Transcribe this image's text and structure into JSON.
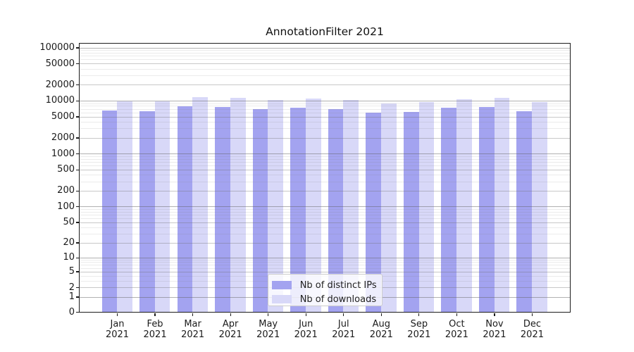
{
  "chart_data": {
    "type": "bar",
    "title": "AnnotationFilter 2021",
    "x_tick_labels": [
      [
        "Jan",
        "2021"
      ],
      [
        "Feb",
        "2021"
      ],
      [
        "Mar",
        "2021"
      ],
      [
        "Apr",
        "2021"
      ],
      [
        "May",
        "2021"
      ],
      [
        "Jun",
        "2021"
      ],
      [
        "Jul",
        "2021"
      ],
      [
        "Aug",
        "2021"
      ],
      [
        "Sep",
        "2021"
      ],
      [
        "Oct",
        "2021"
      ],
      [
        "Nov",
        "2021"
      ],
      [
        "Dec",
        "2021"
      ]
    ],
    "series": [
      {
        "name": "Nb of distinct IPs",
        "color": "#a3a3f0",
        "values": [
          6500,
          6300,
          7900,
          7500,
          7000,
          7400,
          6900,
          6000,
          6200,
          7400,
          7500,
          6300
        ]
      },
      {
        "name": "Nb of downloads",
        "color": "#d8d8f8",
        "values": [
          9800,
          9700,
          11700,
          11300,
          10200,
          10900,
          10400,
          9000,
          9400,
          10800,
          11400,
          9500
        ]
      }
    ],
    "y_axis": {
      "scale": "log1p",
      "ylim": [
        0,
        100000
      ],
      "major_ticks": [
        0,
        1,
        2,
        5,
        10,
        20,
        50,
        100,
        200,
        500,
        1000,
        2000,
        5000,
        10000,
        20000,
        50000,
        100000
      ],
      "minor_ticks": [
        3,
        4,
        6,
        7,
        8,
        9,
        30,
        40,
        60,
        70,
        80,
        90,
        300,
        400,
        600,
        700,
        800,
        900,
        3000,
        4000,
        6000,
        7000,
        8000,
        9000,
        30000,
        40000,
        60000,
        70000,
        80000,
        90000
      ]
    },
    "legend_position": "lower center",
    "grid": true
  },
  "colors": {
    "spine": "#1c1c1c",
    "tick_label": "#1a1a1a",
    "grid_major": "rgba(110,110,110,0.38)",
    "grid_decade": "rgba(100,100,100,0.50)",
    "grid_minor": "rgba(128,128,128,0.16)",
    "legend_border": "#cccccc",
    "background": "#ffffff"
  }
}
